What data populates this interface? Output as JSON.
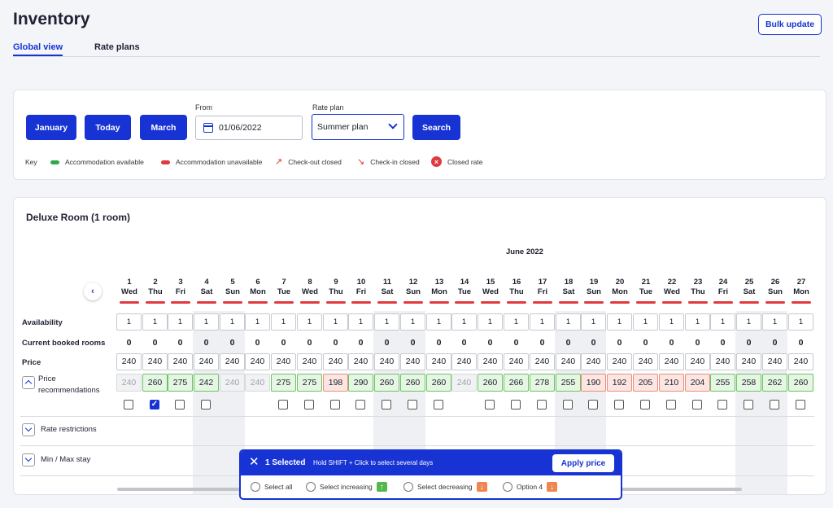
{
  "page": {
    "title": "Inventory",
    "bulk_update": "Bulk update"
  },
  "tabs": [
    {
      "label": "Global view",
      "active": true
    },
    {
      "label": "Rate plans",
      "active": false
    }
  ],
  "filters": {
    "buttons": [
      "January",
      "Today",
      "March"
    ],
    "from_label": "From",
    "from_value": "01/06/2022",
    "rate_plan_label": "Rate plan",
    "rate_plan_value": "Summer plan",
    "search": "Search"
  },
  "key": {
    "label": "Key",
    "items": [
      {
        "text": "Accommodation available",
        "icon": "green-pill",
        "color": "#2fa84f"
      },
      {
        "text": "Accommodation unavailable",
        "icon": "red-pill",
        "color": "#e0393e"
      },
      {
        "text": "Check-out closed",
        "icon": "arrow-up-right-icon"
      },
      {
        "text": "Check-in closed",
        "icon": "arrow-down-right-icon"
      },
      {
        "text": "Closed rate",
        "icon": "closed-x-icon"
      }
    ]
  },
  "room": {
    "title": "Deluxe Room (1 room)",
    "month": "June 2022",
    "days": [
      {
        "num": "1",
        "dow": "Wed"
      },
      {
        "num": "2",
        "dow": "Thu"
      },
      {
        "num": "3",
        "dow": "Fri"
      },
      {
        "num": "4",
        "dow": "Sat"
      },
      {
        "num": "5",
        "dow": "Sun"
      },
      {
        "num": "6",
        "dow": "Mon"
      },
      {
        "num": "7",
        "dow": "Tue"
      },
      {
        "num": "8",
        "dow": "Wed"
      },
      {
        "num": "9",
        "dow": "Thu"
      },
      {
        "num": "10",
        "dow": "Fri"
      },
      {
        "num": "11",
        "dow": "Sat"
      },
      {
        "num": "12",
        "dow": "Sun"
      },
      {
        "num": "13",
        "dow": "Mon"
      },
      {
        "num": "14",
        "dow": "Tue"
      },
      {
        "num": "15",
        "dow": "Wed"
      },
      {
        "num": "16",
        "dow": "Thu"
      },
      {
        "num": "17",
        "dow": "Fri"
      },
      {
        "num": "18",
        "dow": "Sat"
      },
      {
        "num": "19",
        "dow": "Sun"
      },
      {
        "num": "20",
        "dow": "Mon"
      },
      {
        "num": "21",
        "dow": "Tue"
      },
      {
        "num": "22",
        "dow": "Wed"
      },
      {
        "num": "23",
        "dow": "Thu"
      },
      {
        "num": "24",
        "dow": "Fri"
      },
      {
        "num": "25",
        "dow": "Sat"
      },
      {
        "num": "26",
        "dow": "Sun"
      },
      {
        "num": "27",
        "dow": "Mon"
      }
    ],
    "row_labels": {
      "availability": "Availability",
      "booked": "Current booked rooms",
      "price": "Price",
      "recommendations": "Price recommendations"
    },
    "availability": [
      "1",
      "1",
      "1",
      "1",
      "1",
      "1",
      "1",
      "1",
      "1",
      "1",
      "1",
      "1",
      "1",
      "1",
      "1",
      "1",
      "1",
      "1",
      "1",
      "1",
      "1",
      "1",
      "1",
      "1",
      "1",
      "1",
      "1"
    ],
    "booked": [
      "0",
      "0",
      "0",
      "0",
      "0",
      "0",
      "0",
      "0",
      "0",
      "0",
      "0",
      "0",
      "0",
      "0",
      "0",
      "0",
      "0",
      "0",
      "0",
      "0",
      "0",
      "0",
      "0",
      "0",
      "0",
      "0",
      "0"
    ],
    "price": [
      "240",
      "240",
      "240",
      "240",
      "240",
      "240",
      "240",
      "240",
      "240",
      "240",
      "240",
      "240",
      "240",
      "240",
      "240",
      "240",
      "240",
      "240",
      "240",
      "240",
      "240",
      "240",
      "240",
      "240",
      "240",
      "240",
      "240"
    ],
    "recommendations": [
      {
        "v": "240",
        "s": "grey"
      },
      {
        "v": "260",
        "s": "green"
      },
      {
        "v": "275",
        "s": "green"
      },
      {
        "v": "242",
        "s": "green"
      },
      {
        "v": "240",
        "s": "grey"
      },
      {
        "v": "240",
        "s": "grey"
      },
      {
        "v": "275",
        "s": "green"
      },
      {
        "v": "275",
        "s": "green"
      },
      {
        "v": "198",
        "s": "red"
      },
      {
        "v": "290",
        "s": "green"
      },
      {
        "v": "260",
        "s": "green"
      },
      {
        "v": "260",
        "s": "green"
      },
      {
        "v": "260",
        "s": "green"
      },
      {
        "v": "240",
        "s": "grey"
      },
      {
        "v": "260",
        "s": "green"
      },
      {
        "v": "266",
        "s": "green"
      },
      {
        "v": "278",
        "s": "green"
      },
      {
        "v": "255",
        "s": "green"
      },
      {
        "v": "190",
        "s": "red"
      },
      {
        "v": "192",
        "s": "red"
      },
      {
        "v": "205",
        "s": "red"
      },
      {
        "v": "210",
        "s": "red"
      },
      {
        "v": "204",
        "s": "red"
      },
      {
        "v": "255",
        "s": "green"
      },
      {
        "v": "258",
        "s": "green"
      },
      {
        "v": "262",
        "s": "green"
      },
      {
        "v": "260",
        "s": "green"
      }
    ],
    "checkboxes": [
      false,
      true,
      false,
      false,
      null,
      null,
      false,
      false,
      false,
      false,
      false,
      false,
      false,
      null,
      false,
      false,
      false,
      false,
      false,
      false,
      false,
      false,
      false,
      false,
      false,
      false,
      false
    ],
    "sections": [
      "Rate restrictions",
      "Min / Max stay"
    ]
  },
  "selection": {
    "count_label": "1 Selected",
    "hint": "Hold SHIFT + Click to select several days",
    "apply": "Apply price",
    "options": [
      {
        "label": "Select all",
        "tag": null
      },
      {
        "label": "Select increasing",
        "tag": "up"
      },
      {
        "label": "Select decreasing",
        "tag": "down"
      },
      {
        "label": "Option 4",
        "tag": "down"
      }
    ]
  },
  "colors": {
    "accent": "#1733d3",
    "available": "#2fa84f",
    "unavailable": "#e0393e"
  }
}
